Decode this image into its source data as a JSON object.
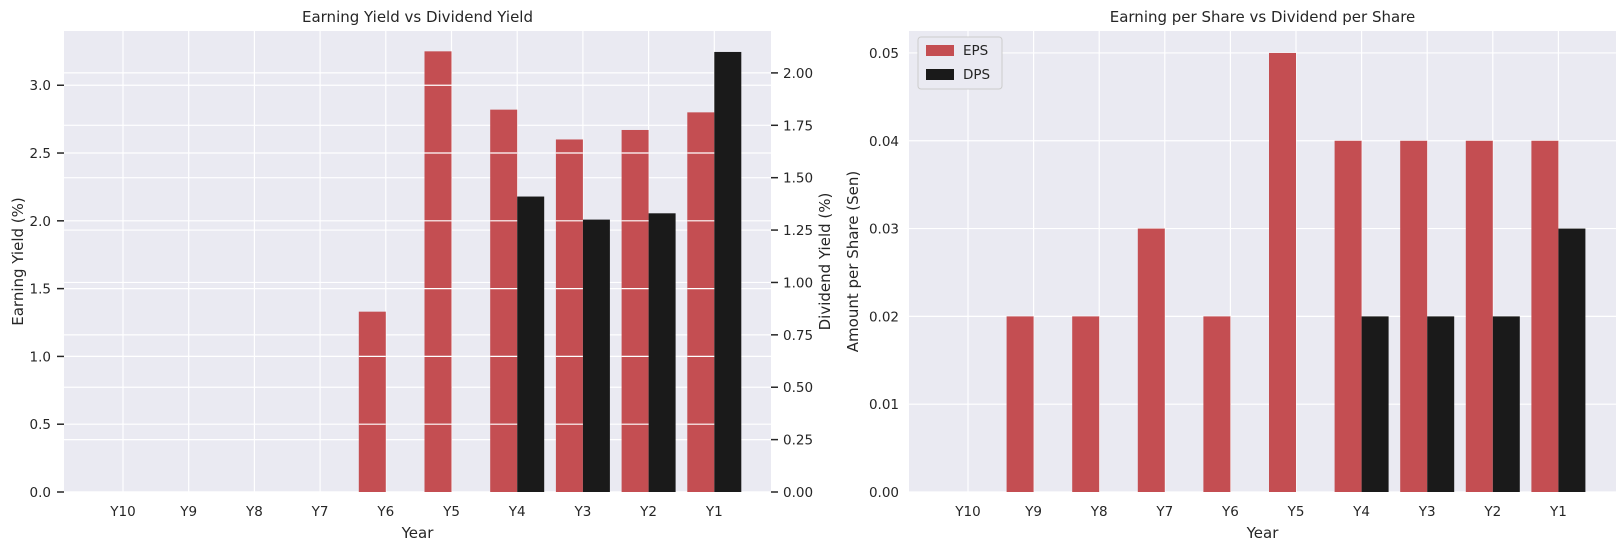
{
  "chart_data": [
    {
      "type": "bar",
      "title": "Earning Yield vs Dividend Yield",
      "xlabel": "Year",
      "ylabel": "Earning Yield (%)",
      "y2label": "Dividend Yield (%)",
      "categories": [
        "Y10",
        "Y9",
        "Y8",
        "Y7",
        "Y6",
        "Y5",
        "Y4",
        "Y3",
        "Y2",
        "Y1"
      ],
      "ylim": [
        0,
        3.4
      ],
      "y2lim": [
        0,
        2.2
      ],
      "yticks": [
        "0.0",
        "0.5",
        "1.0",
        "1.5",
        "2.0",
        "2.5",
        "3.0"
      ],
      "y2ticks": [
        "0.00",
        "0.25",
        "0.50",
        "0.75",
        "1.00",
        "1.25",
        "1.50",
        "1.75",
        "2.00"
      ],
      "grid": true,
      "series": [
        {
          "axis": "left",
          "color": "#c44e52",
          "values": [
            0,
            0,
            0,
            0,
            1.33,
            3.25,
            2.82,
            2.6,
            2.67,
            2.8
          ]
        },
        {
          "axis": "right",
          "color": "#1a1a1a",
          "values": [
            0,
            0,
            0,
            0,
            0,
            0,
            1.41,
            1.3,
            1.33,
            2.1
          ]
        }
      ]
    },
    {
      "type": "bar",
      "title": "Earning per Share vs Dividend per Share",
      "xlabel": "Year",
      "ylabel": "Amount per Share (Sen)",
      "categories": [
        "Y10",
        "Y9",
        "Y8",
        "Y7",
        "Y6",
        "Y5",
        "Y4",
        "Y3",
        "Y2",
        "Y1"
      ],
      "ylim": [
        0,
        0.0525
      ],
      "yticks": [
        "0.00",
        "0.01",
        "0.02",
        "0.03",
        "0.04",
        "0.05"
      ],
      "grid": true,
      "legend_position": "top-left",
      "series": [
        {
          "name": "EPS",
          "color": "#c44e52",
          "values": [
            0,
            0.02,
            0.02,
            0.03,
            0.02,
            0.05,
            0.04,
            0.04,
            0.04,
            0.04
          ]
        },
        {
          "name": "DPS",
          "color": "#1a1a1a",
          "values": [
            0,
            0,
            0,
            0,
            0,
            0,
            0.02,
            0.02,
            0.02,
            0.03
          ]
        }
      ]
    }
  ]
}
